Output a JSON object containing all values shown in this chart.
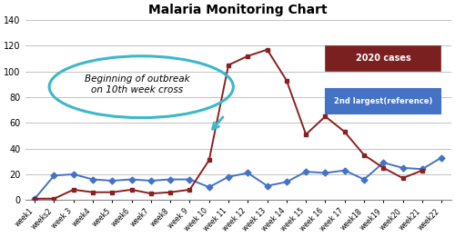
{
  "title": "Malaria Monitoring Chart",
  "weeks": [
    "week1",
    "weeks2",
    "week 3",
    "week4",
    "week5",
    "week6",
    "week7",
    "week8",
    "week 9",
    "week 10",
    "week 11",
    "week 12",
    "week 13",
    "week 14",
    "week 15",
    "week 16",
    "week 17",
    "week18",
    "week19",
    "week20",
    "week21",
    "week22"
  ],
  "cases_2020": [
    1,
    1,
    8,
    6,
    6,
    8,
    5,
    6,
    8,
    31,
    105,
    112,
    117,
    93,
    51,
    65,
    53,
    35,
    25,
    17,
    23,
    null
  ],
  "ref_2nd": [
    1,
    19,
    20,
    16,
    15,
    16,
    15,
    16,
    16,
    10,
    18,
    21,
    11,
    14,
    22,
    21,
    23,
    16,
    29,
    25,
    24,
    33
  ],
  "cases_color": "#8B2020",
  "ref_color": "#4472C4",
  "cases_marker": "s",
  "ref_marker": "D",
  "ylim": [
    0,
    140
  ],
  "yticks": [
    0,
    20,
    40,
    60,
    80,
    100,
    120,
    140
  ],
  "annotation_text": "Beginning of outbreak\non 10th week cross",
  "legend_2020_label": "2020 cases",
  "legend_ref_label": "2nd largest(reference)",
  "legend_2020_facecolor": "#7B2020",
  "legend_2020_edgecolor": "#7B2020",
  "legend_ref_facecolor": "#4472C4",
  "legend_ref_edgecolor": "#4472C4",
  "ellipse_color": "#3CB8C8",
  "arrow_color": "#3CB8C8"
}
